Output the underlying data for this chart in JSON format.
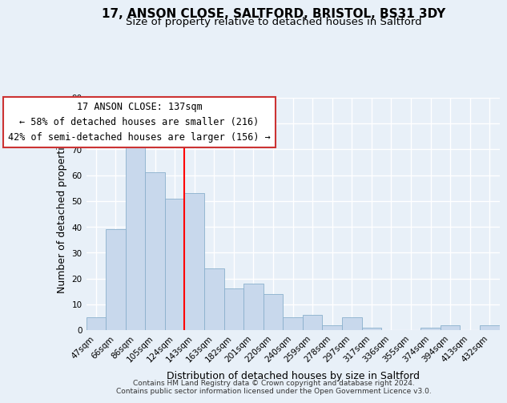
{
  "title": "17, ANSON CLOSE, SALTFORD, BRISTOL, BS31 3DY",
  "subtitle": "Size of property relative to detached houses in Saltford",
  "xlabel": "Distribution of detached houses by size in Saltford",
  "ylabel": "Number of detached properties",
  "bin_labels": [
    "47sqm",
    "66sqm",
    "86sqm",
    "105sqm",
    "124sqm",
    "143sqm",
    "163sqm",
    "182sqm",
    "201sqm",
    "220sqm",
    "240sqm",
    "259sqm",
    "278sqm",
    "297sqm",
    "317sqm",
    "336sqm",
    "355sqm",
    "374sqm",
    "394sqm",
    "413sqm",
    "432sqm"
  ],
  "bar_heights": [
    5,
    39,
    73,
    61,
    51,
    53,
    24,
    16,
    18,
    14,
    5,
    6,
    2,
    5,
    1,
    0,
    0,
    1,
    2,
    0,
    2
  ],
  "bar_color": "#c8d8ec",
  "bar_edge_color": "#8ab0cc",
  "red_line_x": 4.5,
  "ann_line1": "17 ANSON CLOSE: 137sqm",
  "ann_line2": "← 58% of detached houses are smaller (216)",
  "ann_line3": "42% of semi-detached houses are larger (156) →",
  "ylim": [
    0,
    90
  ],
  "yticks": [
    0,
    10,
    20,
    30,
    40,
    50,
    60,
    70,
    80,
    90
  ],
  "background_color": "#e8f0f8",
  "footer_line1": "Contains HM Land Registry data © Crown copyright and database right 2024.",
  "footer_line2": "Contains public sector information licensed under the Open Government Licence v3.0.",
  "title_fontsize": 11,
  "subtitle_fontsize": 9.5,
  "axis_label_fontsize": 9,
  "tick_fontsize": 7.5,
  "annotation_fontsize": 8.5,
  "footer_fontsize": 6.5
}
